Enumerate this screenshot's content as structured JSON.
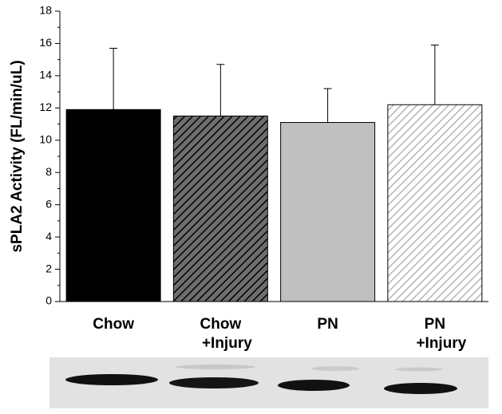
{
  "chart_data": {
    "type": "bar",
    "ylabel": "sPLA2 Activity (FL/min/uL)",
    "categories": [
      "Chow",
      "Chow +Injury",
      "PN",
      "PN +Injury"
    ],
    "values": [
      11.9,
      11.5,
      11.1,
      12.2
    ],
    "errors": [
      3.8,
      3.2,
      2.1,
      3.7
    ],
    "colors": [
      "#000000",
      "#6e6e6e",
      "#c0c0c0",
      "#ffffff"
    ],
    "hatched": [
      false,
      true,
      false,
      true
    ],
    "hatch_colors": [
      "#000000",
      "#000000",
      "#000000",
      "#b4b4b4"
    ],
    "ylim": [
      0,
      18
    ],
    "yticks": [
      0,
      2,
      4,
      6,
      8,
      10,
      12,
      14,
      16,
      18
    ],
    "minor_ticks": true,
    "grid": false
  }
}
